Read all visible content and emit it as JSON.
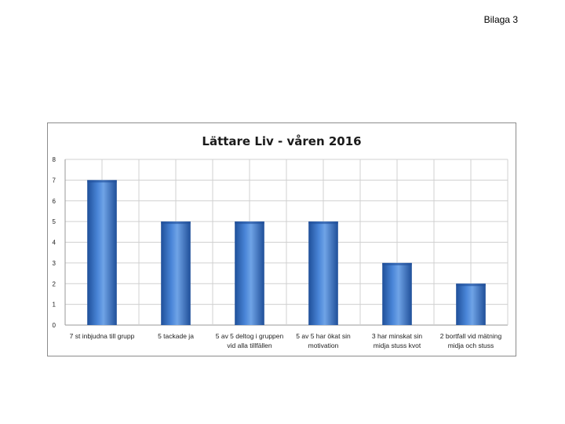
{
  "page": {
    "label": "Bilaga 3"
  },
  "chart_data": {
    "type": "bar",
    "title": "Lättare Liv - våren 2016",
    "categories": [
      [
        "7 st inbjudna till grupp"
      ],
      [
        "5 tackade ja"
      ],
      [
        "5 av 5 deltog i gruppen",
        "vid alla tillfällen"
      ],
      [
        "5 av 5  har ökat sin",
        "motivation"
      ],
      [
        "3  har minskat sin",
        "midja stuss kvot"
      ],
      [
        "2 bortfall vid mätning",
        "midja och stuss"
      ]
    ],
    "values": [
      7,
      5,
      5,
      5,
      3,
      2
    ],
    "ylim": [
      0,
      8
    ],
    "yticks": [
      0,
      1,
      2,
      3,
      4,
      5,
      6,
      7,
      8
    ],
    "xlabel": "",
    "ylabel": "",
    "grid": true,
    "legend": "none",
    "colors": {
      "bar_light": "#6fa3e6",
      "bar_mid": "#3b78cf",
      "bar_dark": "#1f4f99",
      "grid": "#d0d0d0",
      "frame": "#8c8c8c"
    }
  }
}
